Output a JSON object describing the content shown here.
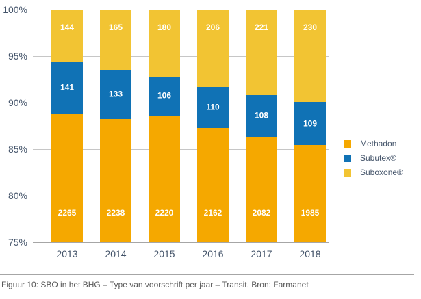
{
  "figure": {
    "caption": "Figuur 10: SBO in het BHG – Type van voorschrift per jaar – Transit. Bron: Farmanet"
  },
  "chart_data": {
    "type": "bar",
    "stacked": true,
    "stacking": "percent",
    "title": "",
    "xlabel": "",
    "ylabel": "",
    "categories": [
      "2013",
      "2014",
      "2015",
      "2016",
      "2017",
      "2018"
    ],
    "series": [
      {
        "name": "Methadon",
        "color": "#f5a800",
        "values": [
          2265,
          2238,
          2220,
          2162,
          2082,
          1985
        ],
        "label_position": "inside-base"
      },
      {
        "name": "Subutex®",
        "color": "#1072b5",
        "values": [
          141,
          133,
          106,
          110,
          108,
          109
        ],
        "label_position": "inside-center"
      },
      {
        "name": "Suboxone®",
        "color": "#f2c433",
        "values": [
          144,
          165,
          180,
          206,
          221,
          230
        ],
        "label_position": "inside-top"
      }
    ],
    "y_axis": {
      "min": 75,
      "max": 100,
      "step": 5,
      "ticks": [
        "100%",
        "95%",
        "90%",
        "85%",
        "80%",
        "75%"
      ],
      "tick_values": [
        100,
        95,
        90,
        85,
        80,
        75
      ]
    },
    "gridlines": true,
    "legend_position": "right",
    "value_labels": true,
    "axis_text_color": "#44546a",
    "gridline_color": "#c6c6c6",
    "caption_text_color": "#595959"
  }
}
